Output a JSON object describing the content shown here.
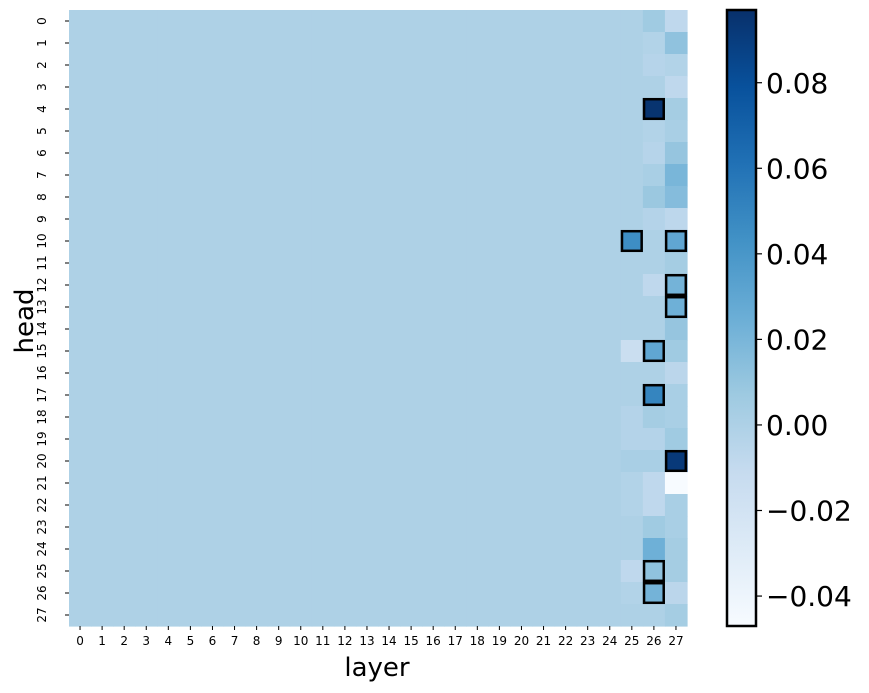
{
  "chart_data": {
    "type": "heatmap",
    "xlabel": "layer",
    "ylabel": "head",
    "x_ticks": [
      "0",
      "1",
      "2",
      "3",
      "4",
      "5",
      "6",
      "7",
      "8",
      "9",
      "10",
      "11",
      "12",
      "13",
      "14",
      "15",
      "16",
      "17",
      "18",
      "19",
      "20",
      "21",
      "22",
      "23",
      "24",
      "25",
      "26",
      "27"
    ],
    "y_ticks": [
      "0",
      "1",
      "2",
      "3",
      "4",
      "5",
      "6",
      "7",
      "8",
      "9",
      "10",
      "11",
      "12",
      "13",
      "14",
      "15",
      "16",
      "17",
      "18",
      "19",
      "20",
      "21",
      "22",
      "23",
      "24",
      "25",
      "26",
      "27"
    ],
    "colormap": "Blues",
    "vmin": -0.047,
    "vmax": 0.097,
    "background_value": 0.0,
    "colorbar_ticks": [
      {
        "value": 0.08,
        "label": "0.08"
      },
      {
        "value": 0.06,
        "label": "0.06"
      },
      {
        "value": 0.04,
        "label": "0.04"
      },
      {
        "value": 0.02,
        "label": "0.02"
      },
      {
        "value": 0.0,
        "label": "0.00"
      },
      {
        "value": -0.02,
        "label": "−0.02"
      },
      {
        "value": -0.04,
        "label": "−0.04"
      }
    ],
    "cells": [
      {
        "layer": 26,
        "head": 0,
        "value": 0.006
      },
      {
        "layer": 27,
        "head": 0,
        "value": -0.008
      },
      {
        "layer": 26,
        "head": 1,
        "value": -0.002
      },
      {
        "layer": 27,
        "head": 1,
        "value": 0.012
      },
      {
        "layer": 26,
        "head": 2,
        "value": -0.004
      },
      {
        "layer": 27,
        "head": 2,
        "value": -0.002
      },
      {
        "layer": 27,
        "head": 3,
        "value": -0.008
      },
      {
        "layer": 26,
        "head": 4,
        "value": 0.095,
        "highlight": true
      },
      {
        "layer": 27,
        "head": 4,
        "value": 0.004
      },
      {
        "layer": 26,
        "head": 5,
        "value": -0.002
      },
      {
        "layer": 27,
        "head": 5,
        "value": 0.002
      },
      {
        "layer": 26,
        "head": 6,
        "value": -0.004
      },
      {
        "layer": 27,
        "head": 6,
        "value": 0.01
      },
      {
        "layer": 26,
        "head": 7,
        "value": 0.002
      },
      {
        "layer": 27,
        "head": 7,
        "value": 0.02
      },
      {
        "layer": 26,
        "head": 8,
        "value": 0.008
      },
      {
        "layer": 27,
        "head": 8,
        "value": 0.016
      },
      {
        "layer": 26,
        "head": 9,
        "value": -0.003
      },
      {
        "layer": 27,
        "head": 9,
        "value": -0.007
      },
      {
        "layer": 25,
        "head": 10,
        "value": 0.045,
        "highlight": true
      },
      {
        "layer": 27,
        "head": 10,
        "value": 0.03,
        "highlight": true
      },
      {
        "layer": 27,
        "head": 11,
        "value": 0.004
      },
      {
        "layer": 26,
        "head": 12,
        "value": -0.008
      },
      {
        "layer": 27,
        "head": 12,
        "value": 0.022,
        "highlight": true
      },
      {
        "layer": 27,
        "head": 13,
        "value": 0.024,
        "highlight": true
      },
      {
        "layer": 27,
        "head": 14,
        "value": 0.01
      },
      {
        "layer": 25,
        "head": 15,
        "value": -0.014
      },
      {
        "layer": 26,
        "head": 15,
        "value": 0.03,
        "highlight": true
      },
      {
        "layer": 27,
        "head": 15,
        "value": 0.006
      },
      {
        "layer": 27,
        "head": 16,
        "value": -0.006
      },
      {
        "layer": 26,
        "head": 17,
        "value": 0.05,
        "highlight": true
      },
      {
        "layer": 27,
        "head": 17,
        "value": 0.002
      },
      {
        "layer": 25,
        "head": 18,
        "value": -0.003
      },
      {
        "layer": 26,
        "head": 18,
        "value": 0.004
      },
      {
        "layer": 27,
        "head": 18,
        "value": 0.002
      },
      {
        "layer": 25,
        "head": 19,
        "value": -0.003
      },
      {
        "layer": 26,
        "head": 19,
        "value": -0.003
      },
      {
        "layer": 27,
        "head": 19,
        "value": 0.006
      },
      {
        "layer": 25,
        "head": 20,
        "value": 0.002
      },
      {
        "layer": 26,
        "head": 20,
        "value": 0.002
      },
      {
        "layer": 27,
        "head": 20,
        "value": 0.092,
        "highlight": true
      },
      {
        "layer": 25,
        "head": 21,
        "value": -0.002
      },
      {
        "layer": 26,
        "head": 21,
        "value": -0.008
      },
      {
        "layer": 27,
        "head": 21,
        "value": -0.047
      },
      {
        "layer": 25,
        "head": 22,
        "value": -0.002
      },
      {
        "layer": 26,
        "head": 22,
        "value": -0.008
      },
      {
        "layer": 27,
        "head": 22,
        "value": 0.002
      },
      {
        "layer": 26,
        "head": 23,
        "value": 0.006
      },
      {
        "layer": 27,
        "head": 23,
        "value": 0.002
      },
      {
        "layer": 26,
        "head": 24,
        "value": 0.024
      },
      {
        "layer": 27,
        "head": 24,
        "value": 0.004
      },
      {
        "layer": 25,
        "head": 25,
        "value": -0.008
      },
      {
        "layer": 26,
        "head": 25,
        "value": 0.012,
        "highlight": true
      },
      {
        "layer": 27,
        "head": 25,
        "value": 0.004
      },
      {
        "layer": 25,
        "head": 26,
        "value": -0.002
      },
      {
        "layer": 26,
        "head": 26,
        "value": 0.022,
        "highlight": true
      },
      {
        "layer": 27,
        "head": 26,
        "value": -0.006
      },
      {
        "layer": 27,
        "head": 27,
        "value": 0.004
      }
    ]
  }
}
